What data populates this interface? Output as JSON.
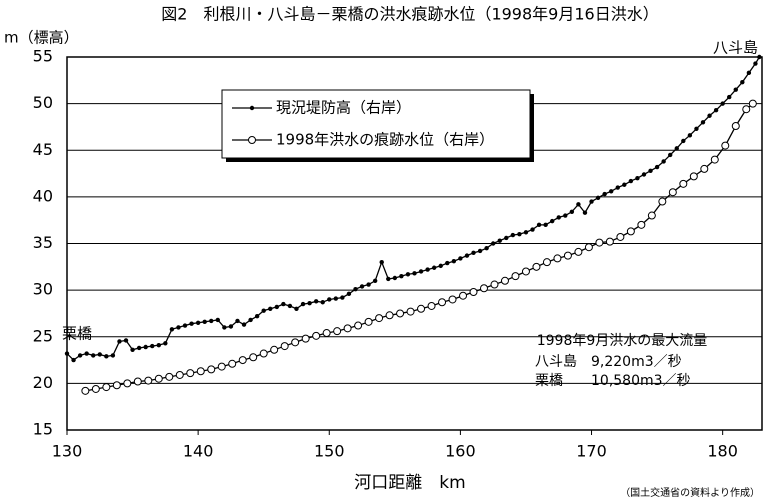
{
  "chart_data": {
    "type": "line",
    "title": "図2　利根川・八斗島－栗橋の洪水痕跡水位（1998年9月16日洪水）",
    "y_label": "m（標高）",
    "x_label": "河口距離　km",
    "xlim": [
      130,
      183
    ],
    "xticks": [
      130,
      140,
      150,
      160,
      170,
      180
    ],
    "ylim": [
      15,
      55
    ],
    "yticks": [
      15,
      20,
      25,
      30,
      35,
      40,
      45,
      50,
      55
    ],
    "grid": true,
    "legend": "top-left",
    "series": [
      {
        "name": "現況堤防高（右岸）",
        "color": "#000000",
        "marker": "filled",
        "x": [
          130.0,
          130.5,
          131.0,
          131.5,
          132.0,
          132.5,
          133.0,
          133.5,
          134.0,
          134.5,
          135.0,
          135.5,
          136.0,
          136.5,
          137.0,
          137.5,
          138.0,
          138.5,
          139.0,
          139.5,
          140.0,
          140.5,
          141.0,
          141.5,
          142.0,
          142.5,
          143.0,
          143.5,
          144.0,
          144.5,
          145.0,
          145.5,
          146.0,
          146.5,
          147.0,
          147.5,
          148.0,
          148.5,
          149.0,
          149.5,
          150.0,
          150.5,
          151.0,
          151.5,
          152.0,
          152.5,
          153.0,
          153.5,
          154.0,
          154.5,
          155.0,
          155.5,
          156.0,
          156.5,
          157.0,
          157.5,
          158.0,
          158.5,
          159.0,
          159.5,
          160.0,
          160.5,
          161.0,
          161.5,
          162.0,
          162.5,
          163.0,
          163.5,
          164.0,
          164.5,
          165.0,
          165.5,
          166.0,
          166.5,
          167.0,
          167.5,
          168.0,
          168.5,
          169.0,
          169.5,
          170.0,
          170.5,
          171.0,
          171.5,
          172.0,
          172.5,
          173.0,
          173.5,
          174.0,
          174.5,
          175.0,
          175.5,
          176.0,
          176.5,
          177.0,
          177.5,
          178.0,
          178.5,
          179.0,
          179.5,
          180.0,
          180.5,
          181.0,
          181.5,
          182.0,
          182.5,
          182.8
        ],
        "values": [
          23.2,
          22.5,
          23.0,
          23.2,
          23.0,
          23.1,
          22.9,
          23.0,
          24.5,
          24.6,
          23.6,
          23.8,
          23.9,
          24.0,
          24.1,
          24.3,
          25.8,
          26.0,
          26.2,
          26.4,
          26.5,
          26.6,
          26.7,
          26.8,
          26.0,
          26.1,
          26.7,
          26.3,
          26.8,
          27.2,
          27.8,
          28.0,
          28.2,
          28.5,
          28.3,
          28.0,
          28.5,
          28.6,
          28.8,
          28.7,
          29.0,
          29.1,
          29.2,
          29.6,
          30.1,
          30.4,
          30.6,
          31.0,
          33.0,
          31.2,
          31.3,
          31.5,
          31.7,
          31.8,
          32.0,
          32.2,
          32.4,
          32.6,
          32.9,
          33.1,
          33.4,
          33.7,
          34.0,
          34.2,
          34.5,
          35.0,
          35.3,
          35.6,
          35.9,
          36.0,
          36.2,
          36.5,
          37.0,
          37.0,
          37.4,
          37.8,
          38.0,
          38.4,
          39.2,
          38.3,
          39.5,
          39.9,
          40.3,
          40.6,
          41.0,
          41.3,
          41.7,
          42.0,
          42.4,
          42.8,
          43.2,
          43.8,
          44.5,
          45.2,
          46.0,
          46.6,
          47.3,
          48.0,
          48.7,
          49.3,
          50.0,
          50.7,
          51.5,
          52.3,
          53.3,
          54.3,
          55.0
        ]
      },
      {
        "name": "1998年洪水の痕跡水位（右岸）",
        "color": "#000000",
        "marker": "open",
        "x": [
          131.4,
          132.2,
          133.0,
          133.8,
          134.6,
          135.4,
          136.2,
          137.0,
          137.8,
          138.6,
          139.4,
          140.2,
          141.0,
          141.8,
          142.6,
          143.4,
          144.2,
          145.0,
          145.8,
          146.6,
          147.4,
          148.2,
          149.0,
          149.8,
          150.6,
          151.4,
          152.2,
          153.0,
          153.8,
          154.6,
          155.4,
          156.2,
          157.0,
          157.8,
          158.6,
          159.4,
          160.2,
          161.0,
          161.8,
          162.6,
          163.4,
          164.2,
          165.0,
          165.8,
          166.6,
          167.4,
          168.2,
          169.0,
          169.8,
          170.6,
          171.4,
          172.2,
          173.0,
          173.8,
          174.6,
          175.4,
          176.2,
          177.0,
          177.8,
          178.6,
          179.4,
          180.2,
          181.0,
          181.8,
          182.3
        ],
        "values": [
          19.2,
          19.4,
          19.6,
          19.8,
          20.0,
          20.2,
          20.3,
          20.5,
          20.7,
          20.9,
          21.1,
          21.3,
          21.5,
          21.8,
          22.1,
          22.5,
          22.8,
          23.2,
          23.6,
          24.0,
          24.4,
          24.8,
          25.1,
          25.4,
          25.6,
          25.9,
          26.2,
          26.6,
          27.0,
          27.3,
          27.5,
          27.7,
          28.0,
          28.3,
          28.7,
          29.0,
          29.4,
          29.8,
          30.2,
          30.6,
          31.0,
          31.5,
          32.0,
          32.5,
          33.0,
          33.4,
          33.7,
          34.1,
          34.6,
          35.1,
          35.2,
          35.7,
          36.3,
          37.0,
          38.0,
          39.5,
          40.5,
          41.4,
          42.2,
          43.0,
          44.0,
          45.5,
          47.6,
          49.4,
          50.0
        ]
      }
    ],
    "annotations": [
      "栗橋",
      "八斗島"
    ],
    "note_box": [
      "1998年9月洪水の最大流量",
      "八斗島　9,220m3／秒",
      "栗橋　　10,580m3／秒"
    ],
    "source": "（国土交通省の資料より作成）"
  }
}
